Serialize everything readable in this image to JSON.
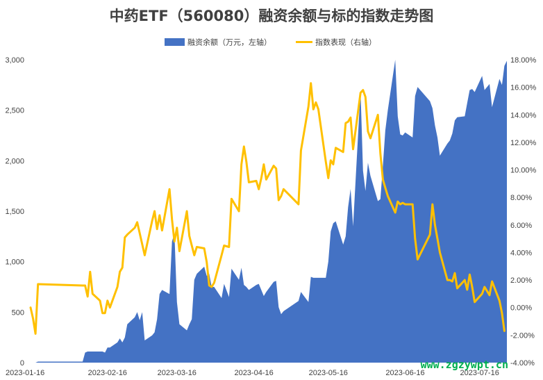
{
  "chart_data": {
    "type": "area+line",
    "title": "中药ETF（560080）融资余额与标的指数走势图",
    "legend": {
      "position": "top",
      "items": [
        {
          "name": "融资余额（万元，左轴）",
          "color": "#4472c4",
          "kind": "area"
        },
        {
          "name": "指数表现（右轴）",
          "color": "#ffc000",
          "kind": "line"
        }
      ]
    },
    "x_axis": {
      "start": "2023-01-16",
      "end": "2023-07-27",
      "tick_labels": [
        "2023-01-16",
        "2023-02-16",
        "2023-03-16",
        "2023-04-16",
        "2023-05-16",
        "2023-06-16",
        "2023-07-16"
      ]
    },
    "y_left": {
      "min": 0,
      "max": 3000,
      "tick_labels": [
        "0",
        "500",
        "1,000",
        "1,500",
        "2,000",
        "2,500",
        "3,000"
      ]
    },
    "y_right": {
      "min": -4,
      "max": 18,
      "tick_labels": [
        "-4.00%",
        "-2.00%",
        "0.00%",
        "2.00%",
        "4.00%",
        "6.00%",
        "8.00%",
        "10.00%",
        "12.00%",
        "14.00%",
        "16.00%",
        "18.00%"
      ]
    },
    "series": [
      {
        "name": "融资余额（万元，左轴）",
        "type": "area",
        "axis": "left",
        "color": "#4472c4",
        "points": [
          [
            "2023-01-18",
            0
          ],
          [
            "2023-01-19",
            10
          ],
          [
            "2023-02-06",
            10
          ],
          [
            "2023-02-07",
            100
          ],
          [
            "2023-02-08",
            110
          ],
          [
            "2023-02-13",
            110
          ],
          [
            "2023-02-14",
            110
          ],
          [
            "2023-02-15",
            100
          ],
          [
            "2023-02-16",
            150
          ],
          [
            "2023-02-17",
            150
          ],
          [
            "2023-02-20",
            200
          ],
          [
            "2023-02-21",
            240
          ],
          [
            "2023-02-22",
            200
          ],
          [
            "2023-02-23",
            250
          ],
          [
            "2023-02-24",
            380
          ],
          [
            "2023-02-27",
            450
          ],
          [
            "2023-02-28",
            500
          ],
          [
            "2023-03-01",
            420
          ],
          [
            "2023-03-02",
            500
          ],
          [
            "2023-03-03",
            220
          ],
          [
            "2023-03-06",
            270
          ],
          [
            "2023-03-07",
            300
          ],
          [
            "2023-03-08",
            430
          ],
          [
            "2023-03-09",
            680
          ],
          [
            "2023-03-10",
            720
          ],
          [
            "2023-03-13",
            680
          ],
          [
            "2023-03-14",
            1200
          ],
          [
            "2023-03-15",
            1280
          ],
          [
            "2023-03-16",
            600
          ],
          [
            "2023-03-17",
            380
          ],
          [
            "2023-03-20",
            320
          ],
          [
            "2023-03-21",
            380
          ],
          [
            "2023-03-22",
            430
          ],
          [
            "2023-03-23",
            820
          ],
          [
            "2023-03-24",
            880
          ],
          [
            "2023-03-27",
            950
          ],
          [
            "2023-03-28",
            860
          ],
          [
            "2023-03-29",
            880
          ],
          [
            "2023-03-30",
            750
          ],
          [
            "2023-03-31",
            750
          ],
          [
            "2023-04-03",
            640
          ],
          [
            "2023-04-04",
            780
          ],
          [
            "2023-04-06",
            650
          ],
          [
            "2023-04-07",
            930
          ],
          [
            "2023-04-10",
            820
          ],
          [
            "2023-04-11",
            940
          ],
          [
            "2023-04-12",
            770
          ],
          [
            "2023-04-13",
            750
          ],
          [
            "2023-04-14",
            720
          ],
          [
            "2023-04-17",
            770
          ],
          [
            "2023-04-18",
            780
          ],
          [
            "2023-04-19",
            720
          ],
          [
            "2023-04-20",
            660
          ],
          [
            "2023-04-21",
            700
          ],
          [
            "2023-04-24",
            800
          ],
          [
            "2023-04-25",
            810
          ],
          [
            "2023-04-26",
            550
          ],
          [
            "2023-04-27",
            480
          ],
          [
            "2023-04-28",
            510
          ],
          [
            "2023-05-04",
            610
          ],
          [
            "2023-05-05",
            700
          ],
          [
            "2023-05-08",
            600
          ],
          [
            "2023-05-09",
            850
          ],
          [
            "2023-05-10",
            840
          ],
          [
            "2023-05-11",
            840
          ],
          [
            "2023-05-12",
            840
          ],
          [
            "2023-05-15",
            840
          ],
          [
            "2023-05-16",
            1000
          ],
          [
            "2023-05-17",
            1300
          ],
          [
            "2023-05-18",
            1380
          ],
          [
            "2023-05-19",
            1400
          ],
          [
            "2023-05-22",
            1170
          ],
          [
            "2023-05-23",
            1250
          ],
          [
            "2023-05-24",
            1540
          ],
          [
            "2023-05-25",
            1720
          ],
          [
            "2023-05-26",
            1350
          ],
          [
            "2023-05-29",
            2700
          ],
          [
            "2023-05-30",
            1900
          ],
          [
            "2023-05-31",
            1700
          ],
          [
            "2023-06-01",
            1980
          ],
          [
            "2023-06-02",
            1850
          ],
          [
            "2023-06-05",
            1600
          ],
          [
            "2023-06-06",
            1620
          ],
          [
            "2023-06-07",
            1950
          ],
          [
            "2023-06-08",
            2300
          ],
          [
            "2023-06-09",
            2500
          ],
          [
            "2023-06-12",
            3000
          ],
          [
            "2023-06-13",
            2440
          ],
          [
            "2023-06-14",
            2260
          ],
          [
            "2023-06-15",
            2250
          ],
          [
            "2023-06-16",
            2280
          ],
          [
            "2023-06-19",
            2230
          ],
          [
            "2023-06-20",
            2640
          ],
          [
            "2023-06-21",
            2730
          ],
          [
            "2023-06-26",
            2590
          ],
          [
            "2023-06-27",
            2520
          ],
          [
            "2023-06-28",
            2350
          ],
          [
            "2023-06-29",
            2230
          ],
          [
            "2023-06-30",
            2050
          ],
          [
            "2023-07-03",
            2170
          ],
          [
            "2023-07-04",
            2200
          ],
          [
            "2023-07-05",
            2270
          ],
          [
            "2023-07-06",
            2400
          ],
          [
            "2023-07-07",
            2430
          ],
          [
            "2023-07-10",
            2440
          ],
          [
            "2023-07-11",
            2570
          ],
          [
            "2023-07-12",
            2700
          ],
          [
            "2023-07-13",
            2710
          ],
          [
            "2023-07-14",
            2680
          ],
          [
            "2023-07-17",
            2840
          ],
          [
            "2023-07-18",
            2700
          ],
          [
            "2023-07-19",
            2730
          ],
          [
            "2023-07-20",
            2760
          ],
          [
            "2023-07-21",
            2530
          ],
          [
            "2023-07-24",
            2810
          ],
          [
            "2023-07-25",
            2750
          ],
          [
            "2023-07-26",
            2940
          ],
          [
            "2023-07-27",
            2990
          ]
        ]
      },
      {
        "name": "指数表现（右轴）",
        "type": "line",
        "axis": "right",
        "color": "#ffc000",
        "points": [
          [
            "2023-01-16",
            0.0
          ],
          [
            "2023-01-17",
            -0.8
          ],
          [
            "2023-01-18",
            -1.9
          ],
          [
            "2023-01-19",
            1.7
          ],
          [
            "2023-02-06",
            1.6
          ],
          [
            "2023-02-07",
            1.6
          ],
          [
            "2023-02-08",
            0.8
          ],
          [
            "2023-02-09",
            2.6
          ],
          [
            "2023-02-10",
            1.0
          ],
          [
            "2023-02-13",
            0.5
          ],
          [
            "2023-02-14",
            -0.4
          ],
          [
            "2023-02-15",
            -0.4
          ],
          [
            "2023-02-16",
            0.5
          ],
          [
            "2023-02-17",
            0.0
          ],
          [
            "2023-02-20",
            1.5
          ],
          [
            "2023-02-21",
            2.6
          ],
          [
            "2023-02-22",
            2.9
          ],
          [
            "2023-02-23",
            5.1
          ],
          [
            "2023-02-24",
            5.3
          ],
          [
            "2023-02-27",
            5.8
          ],
          [
            "2023-02-28",
            6.2
          ],
          [
            "2023-03-01",
            5.4
          ],
          [
            "2023-03-02",
            4.6
          ],
          [
            "2023-03-03",
            3.8
          ],
          [
            "2023-03-06",
            6.3
          ],
          [
            "2023-03-07",
            7.0
          ],
          [
            "2023-03-08",
            5.7
          ],
          [
            "2023-03-09",
            6.7
          ],
          [
            "2023-03-10",
            5.6
          ],
          [
            "2023-03-13",
            8.6
          ],
          [
            "2023-03-14",
            6.4
          ],
          [
            "2023-03-15",
            4.8
          ],
          [
            "2023-03-16",
            5.8
          ],
          [
            "2023-03-17",
            4.1
          ],
          [
            "2023-03-20",
            7.0
          ],
          [
            "2023-03-21",
            5.2
          ],
          [
            "2023-03-22",
            4.5
          ],
          [
            "2023-03-23",
            3.8
          ],
          [
            "2023-03-24",
            4.4
          ],
          [
            "2023-03-27",
            4.3
          ],
          [
            "2023-03-28",
            3.3
          ],
          [
            "2023-03-29",
            1.6
          ],
          [
            "2023-03-30",
            1.5
          ],
          [
            "2023-03-31",
            1.8
          ],
          [
            "2023-04-03",
            3.8
          ],
          [
            "2023-04-04",
            4.5
          ],
          [
            "2023-04-06",
            4.4
          ],
          [
            "2023-04-07",
            7.9
          ],
          [
            "2023-04-10",
            7.0
          ],
          [
            "2023-04-11",
            10.4
          ],
          [
            "2023-04-12",
            11.7
          ],
          [
            "2023-04-13",
            10.6
          ],
          [
            "2023-04-14",
            9.1
          ],
          [
            "2023-04-17",
            9.2
          ],
          [
            "2023-04-18",
            8.6
          ],
          [
            "2023-04-19",
            9.4
          ],
          [
            "2023-04-20",
            10.4
          ],
          [
            "2023-04-21",
            9.3
          ],
          [
            "2023-04-24",
            10.3
          ],
          [
            "2023-04-25",
            10.1
          ],
          [
            "2023-04-26",
            7.8
          ],
          [
            "2023-04-27",
            8.1
          ],
          [
            "2023-04-28",
            8.6
          ],
          [
            "2023-05-04",
            7.5
          ],
          [
            "2023-05-05",
            11.4
          ],
          [
            "2023-05-08",
            14.6
          ],
          [
            "2023-05-09",
            16.3
          ],
          [
            "2023-05-10",
            14.4
          ],
          [
            "2023-05-11",
            14.9
          ],
          [
            "2023-05-12",
            14.4
          ],
          [
            "2023-05-15",
            10.6
          ],
          [
            "2023-05-16",
            9.4
          ],
          [
            "2023-05-17",
            10.7
          ],
          [
            "2023-05-18",
            10.4
          ],
          [
            "2023-05-19",
            11.6
          ],
          [
            "2023-05-22",
            11.3
          ],
          [
            "2023-05-23",
            13.4
          ],
          [
            "2023-05-24",
            13.5
          ],
          [
            "2023-05-25",
            13.8
          ],
          [
            "2023-05-26",
            11.5
          ],
          [
            "2023-05-29",
            15.6
          ],
          [
            "2023-05-30",
            15.8
          ],
          [
            "2023-05-31",
            15.3
          ],
          [
            "2023-06-01",
            12.8
          ],
          [
            "2023-06-02",
            12.3
          ],
          [
            "2023-06-05",
            14.0
          ],
          [
            "2023-06-06",
            11.2
          ],
          [
            "2023-06-07",
            9.3
          ],
          [
            "2023-06-08",
            8.7
          ],
          [
            "2023-06-09",
            8.1
          ],
          [
            "2023-06-12",
            6.9
          ],
          [
            "2023-06-13",
            7.7
          ],
          [
            "2023-06-14",
            7.5
          ],
          [
            "2023-06-15",
            7.6
          ],
          [
            "2023-06-16",
            7.5
          ],
          [
            "2023-06-19",
            7.5
          ],
          [
            "2023-06-20",
            5.0
          ],
          [
            "2023-06-21",
            3.5
          ],
          [
            "2023-06-26",
            5.3
          ],
          [
            "2023-06-27",
            7.5
          ],
          [
            "2023-06-28",
            6.0
          ],
          [
            "2023-06-29",
            5.0
          ],
          [
            "2023-06-30",
            4.0
          ],
          [
            "2023-07-03",
            2.0
          ],
          [
            "2023-07-04",
            2.0
          ],
          [
            "2023-07-05",
            1.9
          ],
          [
            "2023-07-06",
            2.5
          ],
          [
            "2023-07-07",
            1.4
          ],
          [
            "2023-07-10",
            2.0
          ],
          [
            "2023-07-11",
            1.3
          ],
          [
            "2023-07-12",
            2.4
          ],
          [
            "2023-07-13",
            1.5
          ],
          [
            "2023-07-14",
            0.4
          ],
          [
            "2023-07-17",
            1.0
          ],
          [
            "2023-07-18",
            1.5
          ],
          [
            "2023-07-19",
            1.2
          ],
          [
            "2023-07-20",
            0.9
          ],
          [
            "2023-07-21",
            1.9
          ],
          [
            "2023-07-24",
            0.5
          ],
          [
            "2023-07-25",
            -0.4
          ],
          [
            "2023-07-26",
            -1.7
          ]
        ]
      }
    ]
  },
  "watermark": {
    "text": "www.zgzywpt.cn",
    "color": "#00b050"
  }
}
